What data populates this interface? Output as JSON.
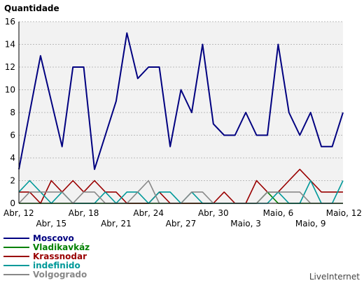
{
  "chart_data": {
    "type": "line",
    "ylabel": "Quantidade",
    "ylim": [
      0,
      16
    ],
    "yticks": [
      0,
      2,
      4,
      6,
      8,
      10,
      12,
      14,
      16
    ],
    "grid": true,
    "legend_position": "bottom-left",
    "x": [
      "Abr, 12",
      "Abr, 13",
      "Abr, 14",
      "Abr, 15",
      "Abr, 16",
      "Abr, 17",
      "Abr, 18",
      "Abr, 19",
      "Abr, 20",
      "Abr, 21",
      "Abr, 22",
      "Abr, 23",
      "Abr, 24",
      "Abr, 25",
      "Abr, 26",
      "Abr, 27",
      "Abr, 28",
      "Abr, 29",
      "Abr, 30",
      "Maio, 1",
      "Maio, 2",
      "Maio, 3",
      "Maio, 4",
      "Maio, 5",
      "Maio, 6",
      "Maio, 7",
      "Maio, 8",
      "Maio, 9",
      "Maio, 10",
      "Maio, 11",
      "Maio, 12"
    ],
    "xtick_labels": [
      {
        "label": "Abr, 12",
        "index": 0,
        "row": 0
      },
      {
        "label": "Abr, 15",
        "index": 3,
        "row": 1
      },
      {
        "label": "Abr, 18",
        "index": 6,
        "row": 0
      },
      {
        "label": "Abr, 21",
        "index": 9,
        "row": 1
      },
      {
        "label": "Abr, 24",
        "index": 12,
        "row": 0
      },
      {
        "label": "Abr, 27",
        "index": 15,
        "row": 1
      },
      {
        "label": "Abr, 30",
        "index": 18,
        "row": 0
      },
      {
        "label": "Maio, 3",
        "index": 21,
        "row": 1
      },
      {
        "label": "Maio, 6",
        "index": 24,
        "row": 0
      },
      {
        "label": "Maio, 9",
        "index": 27,
        "row": 1
      },
      {
        "label": "Maio, 12",
        "index": 30,
        "row": 0
      }
    ],
    "series": [
      {
        "name": "Moscovo",
        "color": "#000080",
        "values": [
          3,
          8,
          13,
          9,
          5,
          12,
          12,
          3,
          6,
          9,
          15,
          11,
          12,
          12,
          5,
          10,
          8,
          14,
          7,
          6,
          6,
          8,
          6,
          6,
          14,
          8,
          6,
          8,
          5,
          5,
          8
        ]
      },
      {
        "name": "Vladikavkáz",
        "color": "#008000",
        "values": [
          0,
          0,
          0,
          0,
          0,
          0,
          0,
          0,
          0,
          0,
          0,
          0,
          0,
          0,
          0,
          0,
          0,
          0,
          0,
          0,
          0,
          0,
          0,
          1,
          0,
          0,
          0,
          0,
          0,
          0,
          0
        ]
      },
      {
        "name": "Krassnodar",
        "color": "#990000",
        "values": [
          1,
          1,
          0,
          2,
          1,
          2,
          1,
          2,
          1,
          1,
          0,
          0,
          0,
          1,
          0,
          0,
          0,
          0,
          0,
          1,
          0,
          0,
          2,
          1,
          1,
          2,
          3,
          2,
          1,
          1,
          1
        ]
      },
      {
        "name": "indefinido",
        "color": "#009999",
        "values": [
          1,
          2,
          1,
          0,
          1,
          0,
          0,
          0,
          1,
          0,
          1,
          1,
          0,
          1,
          1,
          0,
          1,
          0,
          0,
          0,
          0,
          0,
          0,
          0,
          1,
          0,
          0,
          2,
          0,
          0,
          2
        ]
      },
      {
        "name": "Volgogrado",
        "color": "#888888",
        "values": [
          0,
          1,
          1,
          1,
          1,
          0,
          1,
          1,
          0,
          0,
          0,
          1,
          2,
          0,
          0,
          0,
          1,
          1,
          0,
          0,
          0,
          0,
          0,
          1,
          1,
          1,
          1,
          0,
          0,
          0,
          0
        ]
      }
    ]
  },
  "credit": "LiveInternet"
}
